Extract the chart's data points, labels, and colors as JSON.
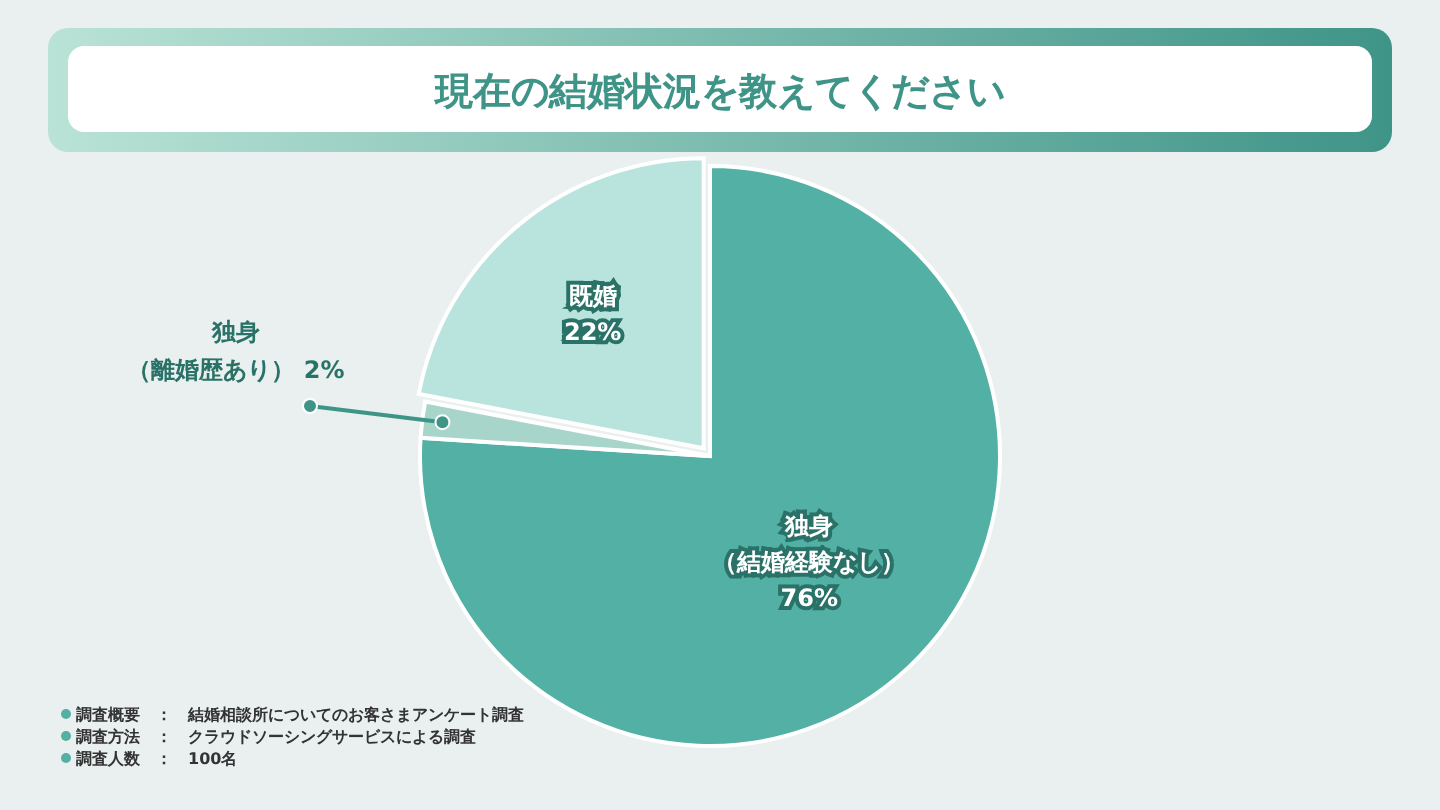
{
  "chart_data": {
    "type": "pie",
    "title": "現在の結婚状況を教えてください",
    "categories": [
      "独身（結婚経験なし）",
      "独身（離婚歴あり）",
      "既婚"
    ],
    "values": [
      76,
      2,
      22
    ],
    "value_labels": [
      "76%",
      "2%",
      "22%"
    ],
    "colors": [
      "#52b0a5",
      "#a8d5c9",
      "#b9e3dd"
    ],
    "legend": false,
    "annotations": [
      "調査概要　：　結婚相談所についてのお客さまアンケート調査",
      "調査方法　：　クラウドソーシングサービスによる調査",
      "調査人数　：　100名"
    ]
  }
}
